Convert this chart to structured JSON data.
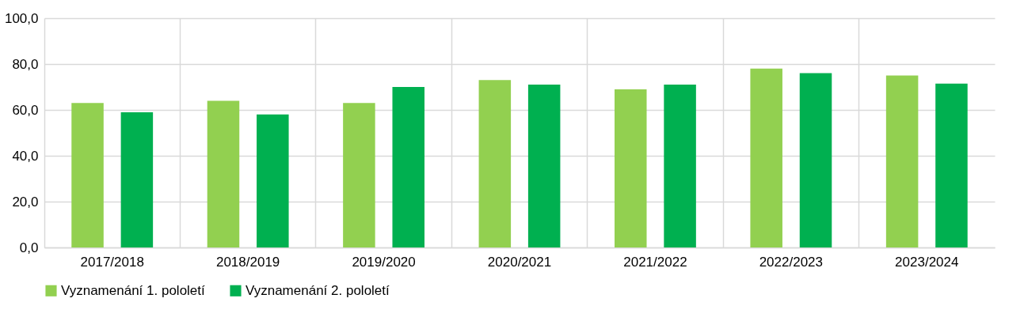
{
  "chart_data": {
    "type": "bar",
    "categories": [
      "2017/2018",
      "2018/2019",
      "2019/2020",
      "2020/2021",
      "2021/2022",
      "2022/2023",
      "2023/2024"
    ],
    "series": [
      {
        "name": "Vyznamenání 1. pololetí",
        "color": "#92d050",
        "values": [
          63,
          64,
          63,
          73,
          69,
          78,
          75
        ]
      },
      {
        "name": "Vyznamenání 2. pololetí",
        "color": "#00b050",
        "values": [
          59,
          58,
          70,
          71,
          71,
          76,
          71.5
        ]
      }
    ],
    "ylim": [
      0,
      100
    ],
    "yticks": [
      {
        "value": 0,
        "label": "0,0"
      },
      {
        "value": 20,
        "label": "20,0"
      },
      {
        "value": 40,
        "label": "40,0"
      },
      {
        "value": 60,
        "label": "60,0"
      },
      {
        "value": 80,
        "label": "80,0"
      },
      {
        "value": 100,
        "label": "100,0"
      }
    ],
    "grid": true,
    "legend": "bottom"
  }
}
